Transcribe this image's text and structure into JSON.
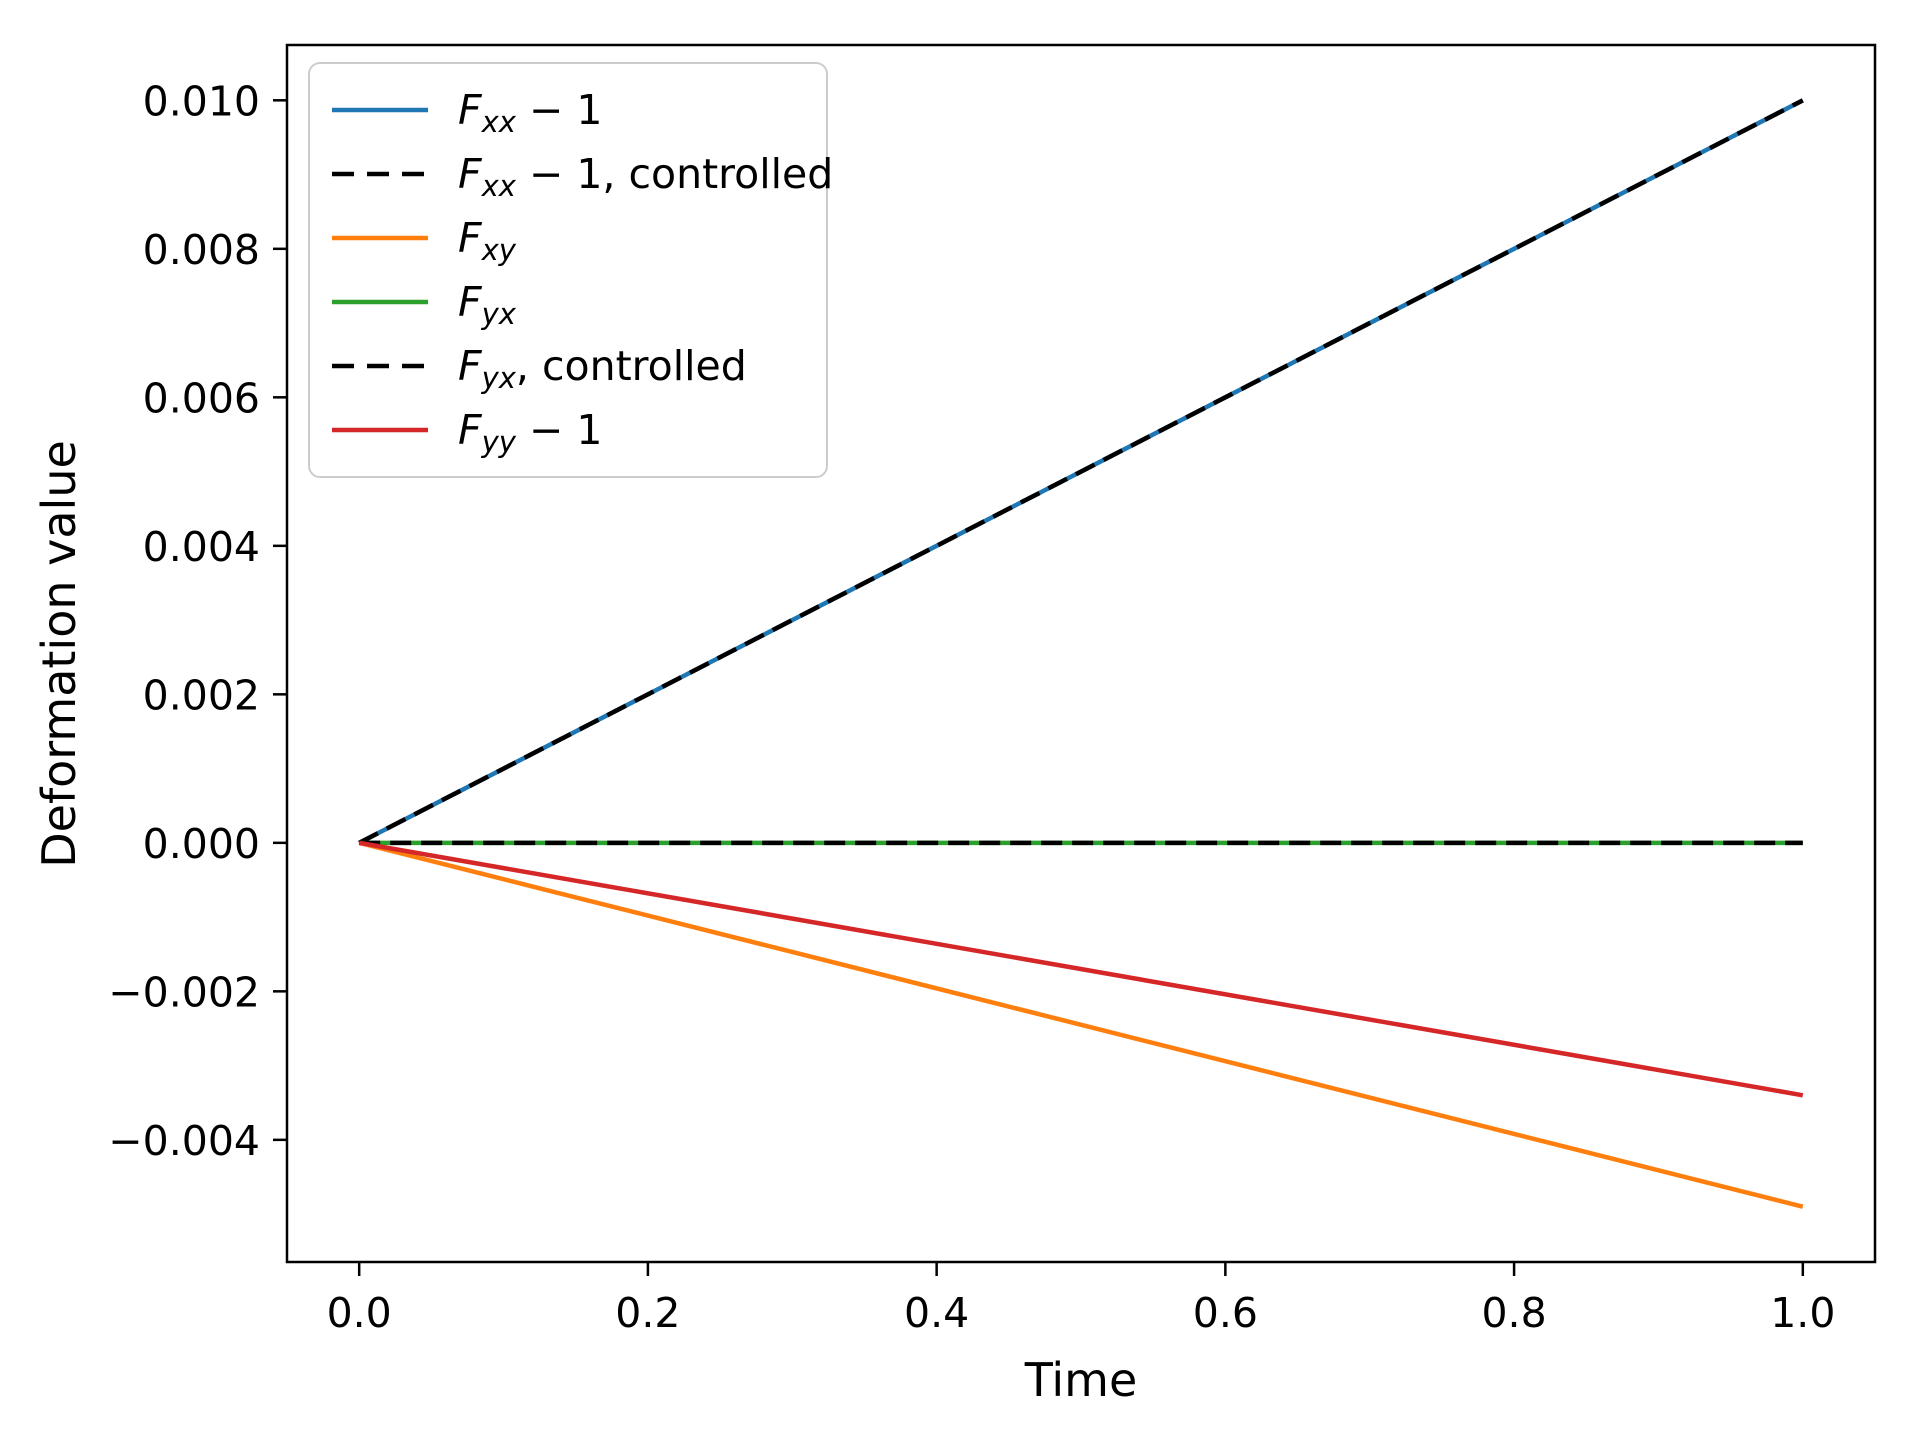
{
  "chart_data": {
    "type": "line",
    "title": "",
    "xlabel": "Time",
    "ylabel": "Deformation value",
    "xlim": [
      -0.05,
      1.05
    ],
    "ylim": [
      -0.005645,
      0.010745
    ],
    "grid": false,
    "legend_position": "upper left",
    "background_color": "#ffffff",
    "axis_color": "#000000",
    "x_tick_values": [
      0.0,
      0.2,
      0.4,
      0.6,
      0.8,
      1.0
    ],
    "x_tick_labels": [
      "0.0",
      "0.2",
      "0.4",
      "0.6",
      "0.8",
      "1.0"
    ],
    "y_tick_values": [
      0.01,
      0.008,
      0.006,
      0.004,
      0.002,
      0.0,
      -0.002,
      -0.004
    ],
    "y_tick_labels": [
      "0.010",
      "0.008",
      "0.006",
      "0.004",
      "0.002",
      "0.000",
      "−0.002",
      "−0.004"
    ],
    "series": [
      {
        "name": "Fxx-1",
        "legend": {
          "var": "F",
          "sub": "xx",
          "suffix": " − 1"
        },
        "color": "#1f77b4",
        "linestyle": "solid",
        "x": [
          0.0,
          1.0
        ],
        "y": [
          0.0,
          0.01
        ]
      },
      {
        "name": "Fxx-1-controlled",
        "legend": {
          "var": "F",
          "sub": "xx",
          "suffix": " − 1, controlled"
        },
        "color": "#000000",
        "linestyle": "dashed",
        "x": [
          0.0,
          1.0
        ],
        "y": [
          0.0,
          0.01
        ]
      },
      {
        "name": "Fxy",
        "legend": {
          "var": "F",
          "sub": "xy",
          "suffix": ""
        },
        "color": "#ff7f0e",
        "linestyle": "solid",
        "x": [
          0.0,
          1.0
        ],
        "y": [
          0.0,
          -0.0049
        ]
      },
      {
        "name": "Fyx",
        "legend": {
          "var": "F",
          "sub": "yx",
          "suffix": ""
        },
        "color": "#2ca02c",
        "linestyle": "solid",
        "x": [
          0.0,
          1.0
        ],
        "y": [
          0.0,
          0.0
        ]
      },
      {
        "name": "Fyx-controlled",
        "legend": {
          "var": "F",
          "sub": "yx",
          "suffix": ", controlled"
        },
        "color": "#000000",
        "linestyle": "dashed",
        "x": [
          0.0,
          1.0
        ],
        "y": [
          0.0,
          0.0
        ]
      },
      {
        "name": "Fyy-1",
        "legend": {
          "var": "F",
          "sub": "yy",
          "suffix": " − 1"
        },
        "color": "#d62728",
        "linestyle": "solid",
        "x": [
          0.0,
          1.0
        ],
        "y": [
          0.0,
          -0.0034
        ]
      }
    ]
  }
}
